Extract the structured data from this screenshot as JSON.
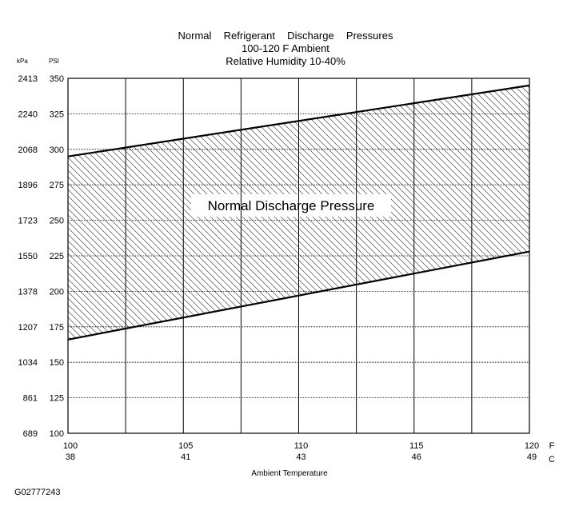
{
  "chart_data": {
    "type": "area",
    "title": "Normal  Refrigerant  Discharge  Pressures",
    "subtitle_lines": [
      "100-120 F Ambient",
      "Relative Humidity 10-40%"
    ],
    "band_label": "Normal Discharge Pressure",
    "xlabel": "Ambient Temperature",
    "x_unit_labels": [
      "F",
      "C"
    ],
    "y_unit_labels": [
      "kPa",
      "PSI"
    ],
    "xlim": [
      100,
      120
    ],
    "ylim": [
      100,
      350
    ],
    "x_ticks": [
      {
        "f": "100",
        "c": "38",
        "value": 100
      },
      {
        "f": "105",
        "c": "41",
        "value": 105
      },
      {
        "f": "110",
        "c": "43",
        "value": 110
      },
      {
        "f": "115",
        "c": "46",
        "value": 115
      },
      {
        "f": "120",
        "c": "49",
        "value": 120
      }
    ],
    "x_grid": [
      100,
      102.5,
      105,
      107.5,
      110,
      112.5,
      115,
      117.5,
      120
    ],
    "y_ticks": [
      {
        "psi": "350",
        "kpa": "2413",
        "value": 350
      },
      {
        "psi": "325",
        "kpa": "2240",
        "value": 325
      },
      {
        "psi": "300",
        "kpa": "2068",
        "value": 300
      },
      {
        "psi": "275",
        "kpa": "1896",
        "value": 275
      },
      {
        "psi": "250",
        "kpa": "1723",
        "value": 250
      },
      {
        "psi": "225",
        "kpa": "1550",
        "value": 225
      },
      {
        "psi": "200",
        "kpa": "1378",
        "value": 200
      },
      {
        "psi": "175",
        "kpa": "1207",
        "value": 175
      },
      {
        "psi": "150",
        "kpa": "1034",
        "value": 150
      },
      {
        "psi": "125",
        "kpa": "861",
        "value": 125
      },
      {
        "psi": "100",
        "kpa": "689",
        "value": 100
      }
    ],
    "series": [
      {
        "x": [
          100,
          120
        ],
        "values": [
          295,
          345
        ]
      },
      {
        "x": [
          100,
          120
        ],
        "values": [
          166,
          228
        ]
      }
    ],
    "grid": true
  },
  "figure_id": "G02777243"
}
